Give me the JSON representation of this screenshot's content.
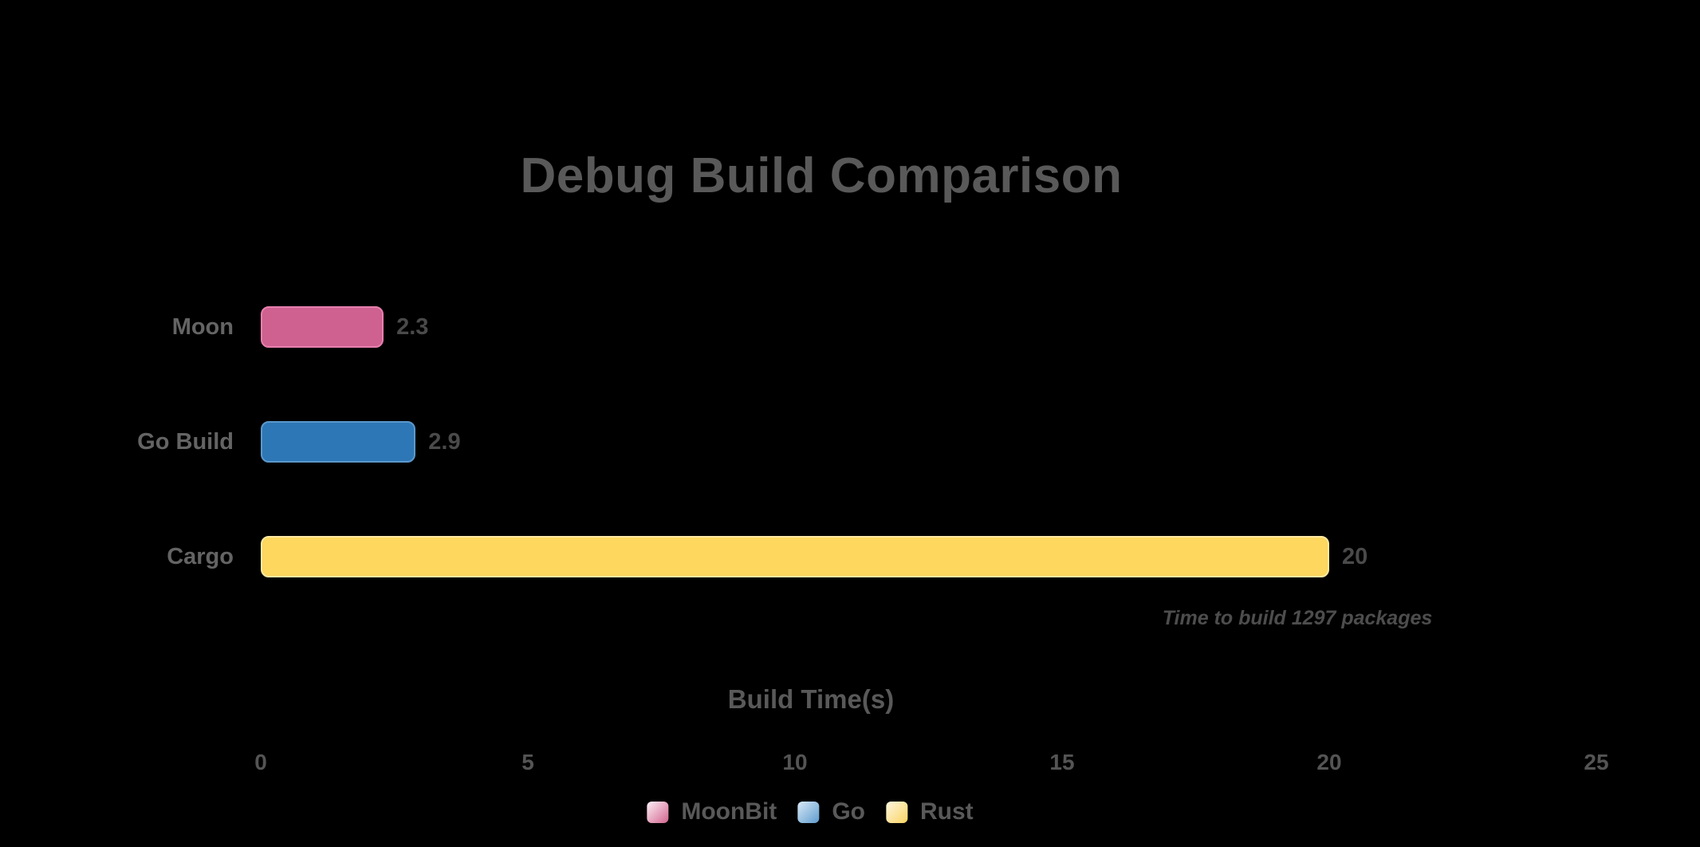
{
  "chart_data": {
    "type": "bar",
    "orientation": "horizontal",
    "title": "Debug Build Comparison",
    "xlabel": "Build Time(s)",
    "xlim": [
      0,
      25
    ],
    "xticks": [
      0,
      5,
      10,
      15,
      20,
      25
    ],
    "grid": false,
    "legend_position": "bottom",
    "annotation": "Time to build 1297 packages",
    "background_color": "#000000",
    "title_color": "#595959",
    "categories": [
      "Moon",
      "Go Build",
      "Cargo"
    ],
    "values": [
      2.3,
      2.9,
      20
    ],
    "bars": [
      {
        "category": "Moon",
        "value": 2.3,
        "value_label": "2.3",
        "series": "MoonBit",
        "color": "#ce6190",
        "edge_color": "#e87fae",
        "legend_gradient_top": "#fdf0f6",
        "legend_gradient_bottom": "#d2648e"
      },
      {
        "category": "Go Build",
        "value": 2.9,
        "value_label": "2.9",
        "series": "Go",
        "color": "#2e77b6",
        "edge_color": "#5b98cb",
        "legend_gradient_top": "#d9e9f6",
        "legend_gradient_bottom": "#5e9bce"
      },
      {
        "category": "Cargo",
        "value": 20,
        "value_label": "20",
        "series": "Rust",
        "color": "#fdd75e",
        "edge_color": "#fee9a0",
        "legend_gradient_top": "#fef7e0",
        "legend_gradient_bottom": "#f9d362"
      }
    ]
  }
}
